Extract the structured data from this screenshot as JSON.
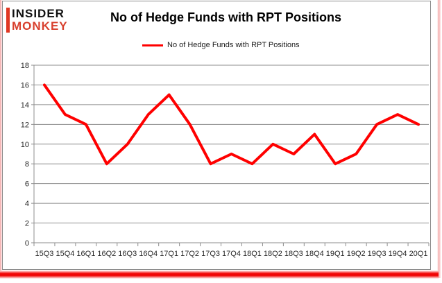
{
  "logo": {
    "line1": "INSIDER",
    "line2": "MONKEY"
  },
  "header": {
    "title": "No of Hedge Funds with RPT Positions"
  },
  "legend": {
    "label": "No of Hedge Funds with RPT Positions"
  },
  "chart_data": {
    "type": "line",
    "title": "No of Hedge Funds with RPT Positions",
    "series_name": "No of Hedge Funds with RPT Positions",
    "categories": [
      "15Q3",
      "15Q4",
      "16Q1",
      "16Q2",
      "16Q3",
      "16Q4",
      "17Q1",
      "17Q2",
      "17Q3",
      "17Q4",
      "18Q1",
      "18Q2",
      "18Q3",
      "18Q4",
      "19Q1",
      "19Q2",
      "19Q3",
      "19Q4",
      "20Q1"
    ],
    "values": [
      16,
      13,
      12,
      8,
      10,
      13,
      15,
      12,
      8,
      9,
      8,
      10,
      9,
      11,
      8,
      9,
      12,
      13,
      12
    ],
    "xlabel": "",
    "ylabel": "",
    "ylim": [
      0,
      18
    ],
    "ytick_step": 2,
    "grid": true,
    "legend_position": "top-center",
    "line_color": "#ff0000",
    "axis_color": "#8c8c8c",
    "tick_label_color": "#262626"
  },
  "colors": {
    "accent_red": "#ff0000",
    "logo_red": "#d8402e",
    "frame_gray": "#8a8a8a",
    "shadow_red": "#ee0000"
  }
}
